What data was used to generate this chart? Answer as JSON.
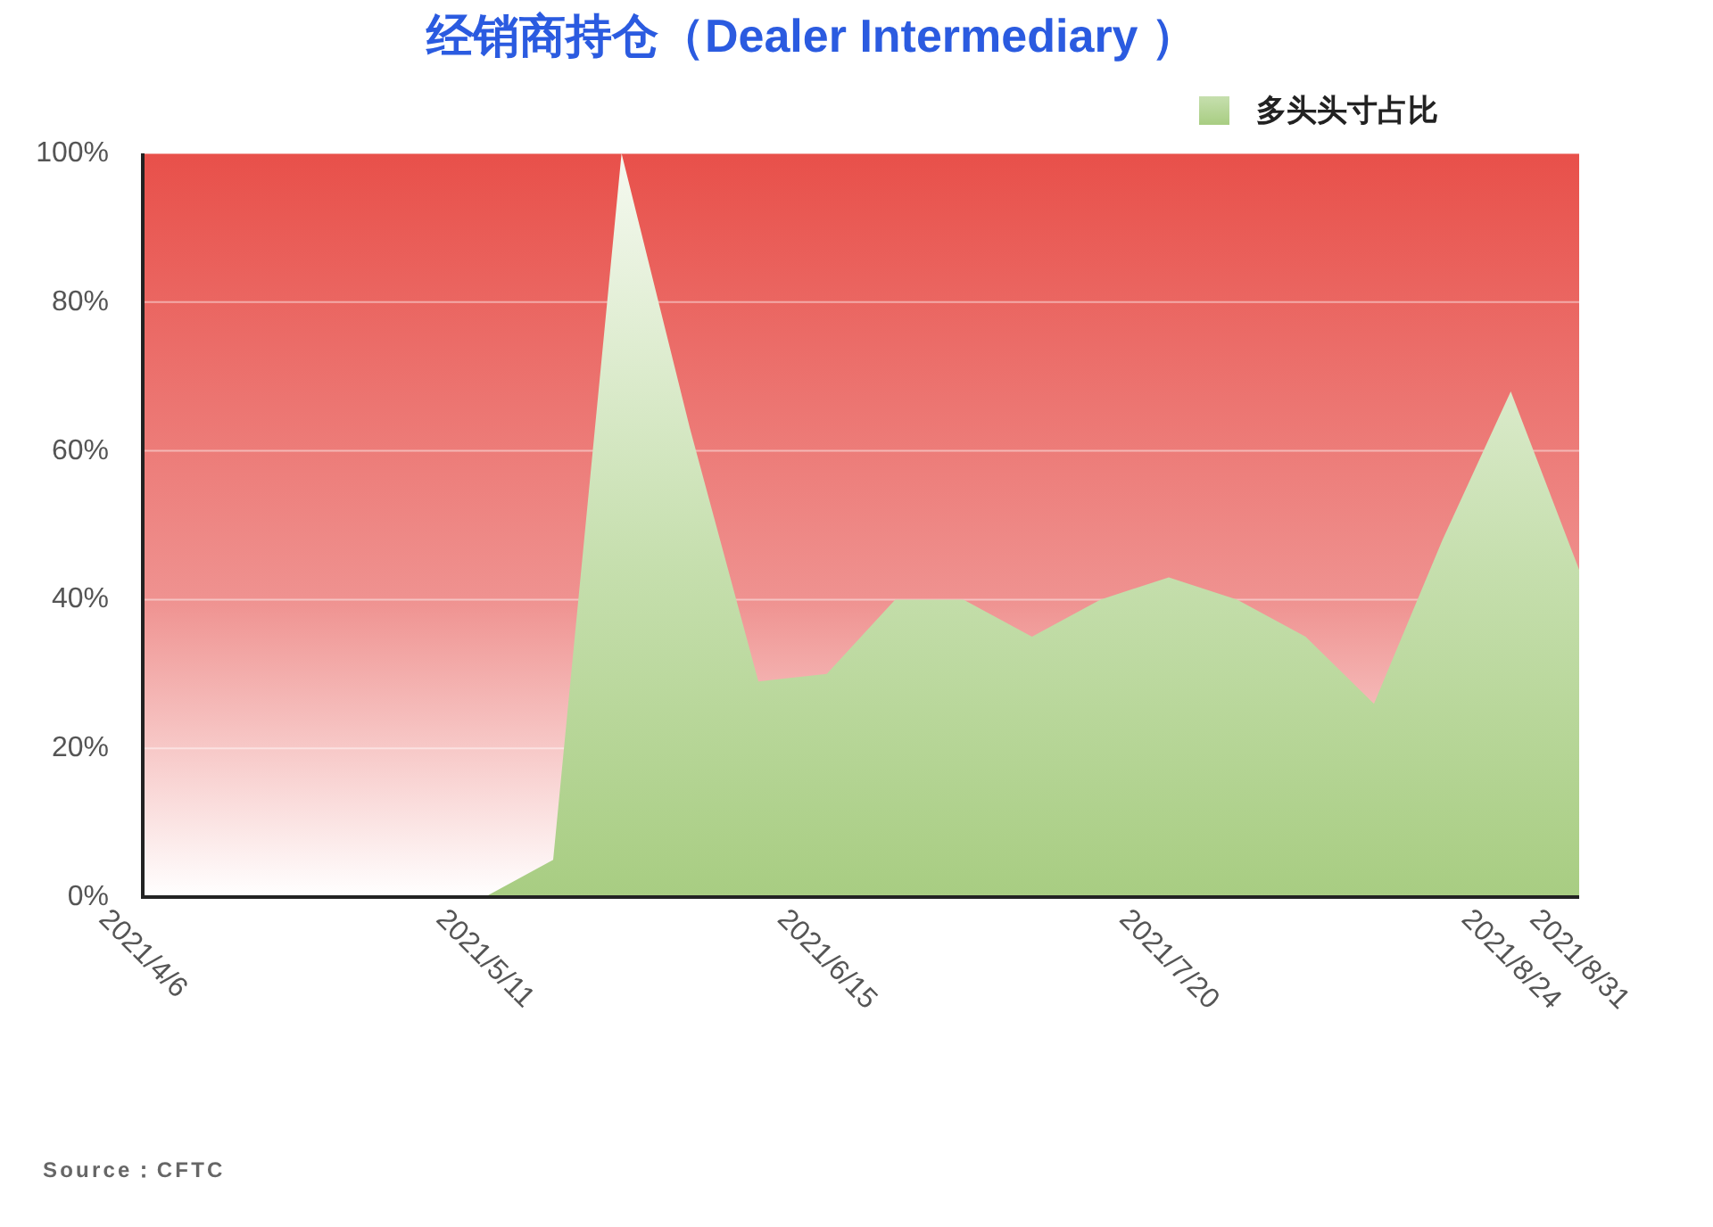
{
  "chart_data": {
    "type": "area",
    "title": "经销商持仓（Dealer Intermediary ）",
    "x": [
      "2021-05-11",
      "2021-05-18",
      "2021-05-25",
      "2021-06-01",
      "2021-06-08",
      "2021-06-15",
      "2021-06-22",
      "2021-06-29",
      "2021-07-06",
      "2021-07-13",
      "2021-07-20",
      "2021-07-27",
      "2021-08-03",
      "2021-08-10",
      "2021-08-17",
      "2021-08-24",
      "2021-08-31"
    ],
    "series": [
      {
        "name": "多头头寸占比",
        "color": "#a8cd82",
        "values": [
          0,
          5,
          100,
          63,
          29,
          30,
          40,
          40,
          35,
          40,
          43,
          40,
          35,
          26,
          48,
          68,
          44
        ]
      }
    ],
    "xlim": [
      "2021-04-06",
      "2021-08-31"
    ],
    "xticks": [
      {
        "value": "2021-04-06",
        "label": "2021/4/6"
      },
      {
        "value": "2021-05-11",
        "label": "2021/5/11"
      },
      {
        "value": "2021-06-15",
        "label": "2021/6/15"
      },
      {
        "value": "2021-07-20",
        "label": "2021/7/20"
      },
      {
        "value": "2021-08-24",
        "label": "2021/8/24"
      },
      {
        "value": "2021-08-31",
        "label": "2021/8/31"
      }
    ],
    "ylim": [
      0,
      100
    ],
    "yticks": [
      {
        "value": 0,
        "label": "0%"
      },
      {
        "value": 20,
        "label": "20%"
      },
      {
        "value": 40,
        "label": "40%"
      },
      {
        "value": 60,
        "label": "60%"
      },
      {
        "value": 80,
        "label": "80%"
      },
      {
        "value": 100,
        "label": "100%"
      }
    ],
    "grid": "y",
    "legend": "top right",
    "annotations": [
      "Source：CFTC"
    ]
  }
}
